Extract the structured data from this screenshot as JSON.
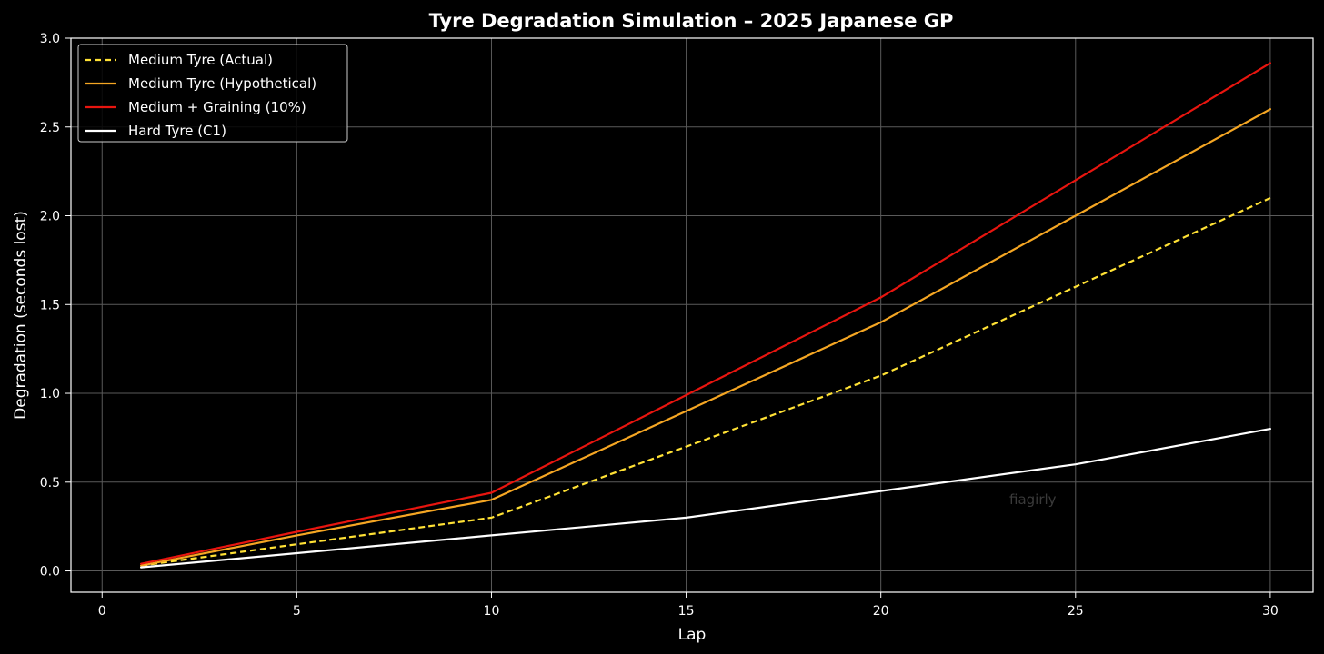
{
  "chart_data": {
    "type": "line",
    "title": "Tyre Degradation Simulation – 2025 Japanese GP",
    "xlabel": "Lap",
    "ylabel": "Degradation (seconds lost)",
    "xlim": [
      -0.8,
      31.1
    ],
    "ylim": [
      -0.12,
      3.0
    ],
    "xticks": [
      0,
      5,
      10,
      15,
      20,
      25,
      30
    ],
    "yticks": [
      0.0,
      0.5,
      1.0,
      1.5,
      2.0,
      2.5,
      3.0
    ],
    "xtick_labels": [
      "0",
      "5",
      "10",
      "15",
      "20",
      "25",
      "30"
    ],
    "ytick_labels": [
      "0.0",
      "0.5",
      "1.0",
      "1.5",
      "2.0",
      "2.5",
      "3.0"
    ],
    "grid": true,
    "legend_position": "top-left",
    "x": [
      1,
      5,
      10,
      15,
      20,
      25,
      30
    ],
    "series": [
      {
        "name": "Medium Tyre (Actual)",
        "values": [
          0.03,
          0.15,
          0.3,
          0.7,
          1.1,
          1.6,
          2.1
        ],
        "color": "#ffe135",
        "dash": "dashed"
      },
      {
        "name": "Medium Tyre (Hypothetical)",
        "values": [
          0.03,
          0.2,
          0.4,
          0.9,
          1.4,
          2.0,
          2.6
        ],
        "color": "#f5a623",
        "dash": "solid"
      },
      {
        "name": "Medium + Graining (10%)",
        "values": [
          0.04,
          0.22,
          0.44,
          0.99,
          1.54,
          2.2,
          2.86
        ],
        "color": "#e8150f",
        "dash": "solid"
      },
      {
        "name": "Hard Tyre (C1)",
        "values": [
          0.02,
          0.1,
          0.2,
          0.3,
          0.45,
          0.6,
          0.8
        ],
        "color": "#ffffff",
        "dash": "solid"
      }
    ],
    "watermark": "fiagirly"
  }
}
